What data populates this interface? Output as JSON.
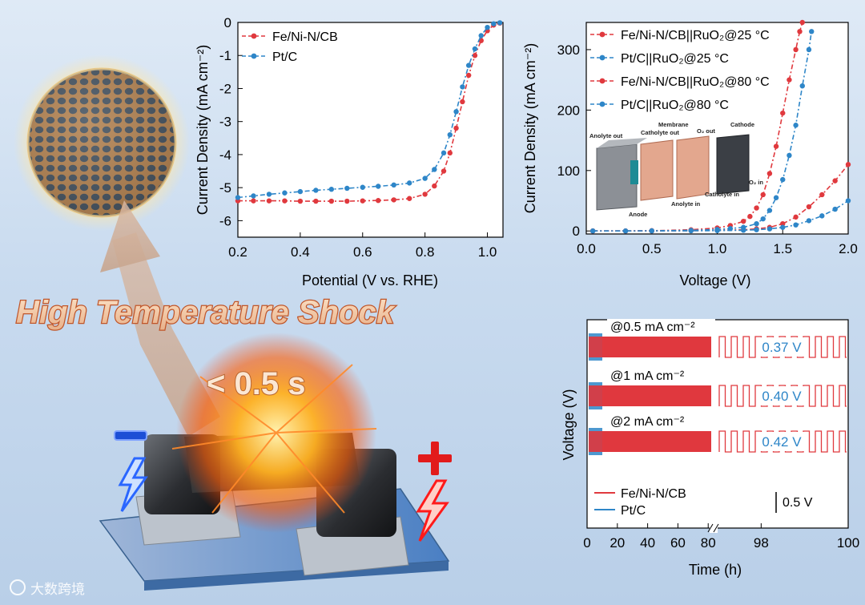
{
  "headline": "High Temperature Shock",
  "time_label": "< 0.5 s",
  "electrode_neg": "−",
  "electrode_pos": "+",
  "watermark": "大数跨境",
  "chart_data": [
    {
      "type": "line",
      "xlabel": "Potential (V vs. RHE)",
      "ylabel": "Current Density (mA cm⁻²)",
      "xlim": [
        0.2,
        1.05
      ],
      "ylim": [
        -6.5,
        0
      ],
      "xticks": [
        0.2,
        0.4,
        0.6,
        0.8,
        1.0
      ],
      "xtick_labels": [
        "0.2",
        "0.4",
        "0.6",
        "0.8",
        "1.0"
      ],
      "yticks": [
        0,
        -1,
        -2,
        -3,
        -4,
        -5,
        -6
      ],
      "ytick_labels": [
        "0",
        "-1",
        "-2",
        "-3",
        "-4",
        "-5",
        "-6"
      ],
      "legend_position": "top-left",
      "colors": [
        "#e0393e",
        "#2e86c8"
      ],
      "series": [
        {
          "name": "Fe/Ni-N/CB",
          "x": [
            0.2,
            0.25,
            0.3,
            0.35,
            0.4,
            0.45,
            0.5,
            0.55,
            0.6,
            0.65,
            0.7,
            0.75,
            0.8,
            0.83,
            0.86,
            0.88,
            0.9,
            0.92,
            0.94,
            0.96,
            0.98,
            1.0,
            1.02,
            1.04
          ],
          "y": [
            -5.4,
            -5.4,
            -5.4,
            -5.4,
            -5.41,
            -5.41,
            -5.41,
            -5.41,
            -5.4,
            -5.39,
            -5.37,
            -5.33,
            -5.2,
            -4.95,
            -4.5,
            -3.95,
            -3.2,
            -2.4,
            -1.6,
            -1.0,
            -0.55,
            -0.25,
            -0.08,
            -0.02
          ]
        },
        {
          "name": "Pt/C",
          "x": [
            0.2,
            0.25,
            0.3,
            0.35,
            0.4,
            0.45,
            0.5,
            0.55,
            0.6,
            0.65,
            0.7,
            0.75,
            0.8,
            0.83,
            0.86,
            0.88,
            0.9,
            0.92,
            0.94,
            0.96,
            0.98,
            1.0,
            1.02,
            1.04
          ],
          "y": [
            -5.3,
            -5.25,
            -5.2,
            -5.16,
            -5.12,
            -5.08,
            -5.05,
            -5.02,
            -4.99,
            -4.96,
            -4.92,
            -4.86,
            -4.72,
            -4.45,
            -3.95,
            -3.4,
            -2.7,
            -1.95,
            -1.3,
            -0.8,
            -0.4,
            -0.15,
            -0.04,
            -0.01
          ]
        }
      ]
    },
    {
      "type": "line",
      "xlabel": "Voltage (V)",
      "ylabel": "Current Density (mA cm⁻²)",
      "xlim": [
        0.0,
        2.0
      ],
      "ylim": [
        -5,
        345
      ],
      "xticks": [
        0.0,
        0.5,
        1.0,
        1.5,
        2.0
      ],
      "xtick_labels": [
        "0.0",
        "0.5",
        "1.0",
        "1.5",
        "2.0"
      ],
      "yticks": [
        0,
        100,
        200,
        300
      ],
      "ytick_labels": [
        "0",
        "100",
        "200",
        "300"
      ],
      "legend_position": "top-left",
      "colors": [
        "#e0393e",
        "#2e86c8"
      ],
      "series": [
        {
          "name": "Fe/Ni-N/CB||RuO₂@25 °C",
          "x": [
            0.05,
            0.3,
            0.5,
            0.8,
            1.0,
            1.2,
            1.3,
            1.4,
            1.5,
            1.6,
            1.7,
            1.8,
            1.9,
            2.0
          ],
          "y": [
            0,
            0,
            0,
            0.5,
            1,
            2,
            3.5,
            6,
            12,
            23,
            40,
            60,
            83,
            110
          ]
        },
        {
          "name": "Pt/C||RuO₂@25 °C",
          "x": [
            0.05,
            0.3,
            0.5,
            0.8,
            1.0,
            1.2,
            1.3,
            1.4,
            1.5,
            1.6,
            1.7,
            1.8,
            1.9,
            2.0
          ],
          "y": [
            0,
            0,
            0,
            0.3,
            0.6,
            1.2,
            2,
            3.5,
            6,
            10,
            17,
            25,
            36,
            50
          ]
        },
        {
          "name": "Fe/Ni-N/CB||RuO₂@80 °C",
          "x": [
            0.05,
            0.3,
            0.5,
            0.8,
            1.0,
            1.1,
            1.2,
            1.25,
            1.3,
            1.35,
            1.4,
            1.45,
            1.5,
            1.55,
            1.6,
            1.63,
            1.65
          ],
          "y": [
            0,
            0,
            0.5,
            2,
            5,
            9,
            16,
            24,
            38,
            60,
            95,
            140,
            195,
            250,
            300,
            330,
            345
          ]
        },
        {
          "name": "Pt/C||RuO₂@80 °C",
          "x": [
            0.05,
            0.3,
            0.5,
            0.8,
            1.0,
            1.1,
            1.2,
            1.3,
            1.35,
            1.4,
            1.45,
            1.5,
            1.55,
            1.6,
            1.65,
            1.7,
            1.72
          ],
          "y": [
            0,
            0,
            0.3,
            1,
            2.5,
            4,
            6,
            12,
            20,
            34,
            55,
            85,
            125,
            175,
            240,
            300,
            330
          ]
        }
      ],
      "inset_labels": [
        "Anolyte out",
        "Catholyte out",
        "Membrane",
        "O₂ out",
        "Cathode",
        "Anode",
        "Anolyte in",
        "Catholyte in",
        "O₂ in"
      ]
    },
    {
      "type": "line",
      "xlabel": "Time (h)",
      "ylabel": "Voltage (V)",
      "xticks": [
        0,
        20,
        40,
        60,
        80,
        98,
        100
      ],
      "xtick_labels": [
        "0",
        "20",
        "40",
        "60",
        "80",
        "98",
        "100"
      ],
      "axis_break": true,
      "legend_position": "bottom-left",
      "colors": [
        "#e0393e",
        "#2e86c8"
      ],
      "series": [
        {
          "name": "Fe/Ni-N/CB"
        },
        {
          "name": "Pt/C"
        }
      ],
      "annotations": [
        {
          "label": "@0.5 mA cm⁻²",
          "gap": "0.37 V"
        },
        {
          "label": "@1 mA cm⁻²",
          "gap": "0.40 V"
        },
        {
          "label": "@2 mA cm⁻²",
          "gap": "0.42 V"
        }
      ],
      "scale_bar": "0.5 V"
    }
  ]
}
